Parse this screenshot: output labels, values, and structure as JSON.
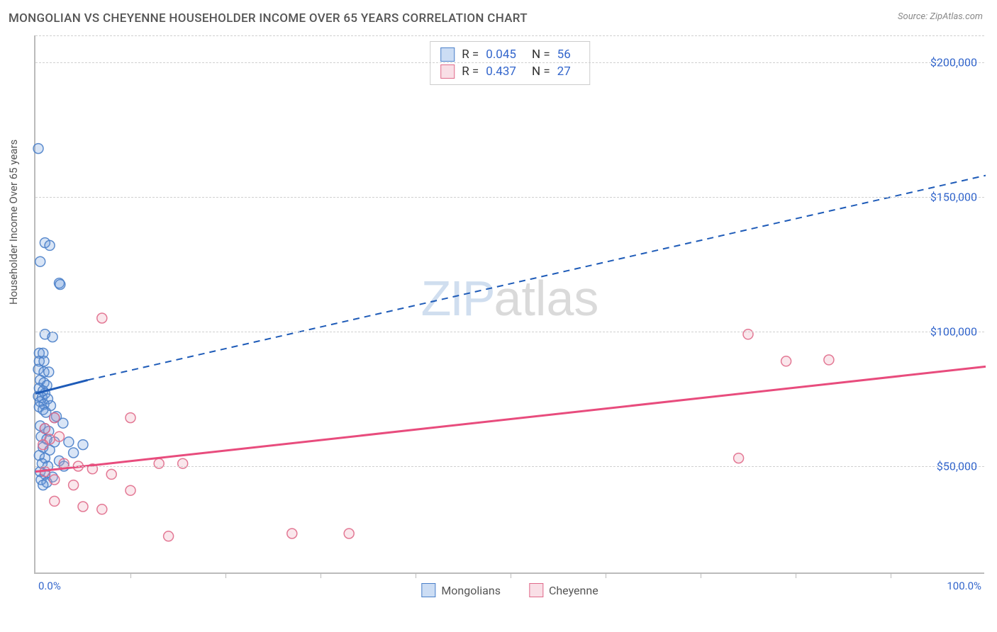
{
  "title": "MONGOLIAN VS CHEYENNE HOUSEHOLDER INCOME OVER 65 YEARS CORRELATION CHART",
  "source": "Source: ZipAtlas.com",
  "ylabel": "Householder Income Over 65 years",
  "watermark_left": "ZIP",
  "watermark_right": "atlas",
  "chart": {
    "type": "scatter",
    "xlim": [
      0,
      100
    ],
    "ylim": [
      10000,
      210000
    ],
    "x_tick_label_min": "0.0%",
    "x_tick_label_max": "100.0%",
    "x_minor_ticks": [
      10,
      20,
      30,
      40,
      50,
      60,
      70,
      80,
      90
    ],
    "y_ticks": [
      50000,
      100000,
      150000,
      200000
    ],
    "y_tick_labels": [
      "$50,000",
      "$100,000",
      "$150,000",
      "$200,000"
    ],
    "background_color": "#ffffff",
    "grid_color": "#d0d0d0",
    "axis_color": "#bbbbbb",
    "tick_label_color": "#3366cc",
    "axis_label_color": "#555555",
    "marker_radius": 7,
    "marker_stroke_width": 1.5,
    "marker_fill_opacity": 0.25,
    "marker_stroke_opacity": 0.9,
    "trend_line_width": 3,
    "trend_dash_pattern": "9 7",
    "series": [
      {
        "name": "Mongolians",
        "color": "#6699dd",
        "stroke": "#4a7fc9",
        "trend_color": "#1e5bb8",
        "r_label": "R =",
        "r_value": "0.045",
        "n_label": "N =",
        "n_value": "56",
        "trend_solid": {
          "x1": 0,
          "y1": 77000,
          "x2": 5.5,
          "y2": 82000
        },
        "trend_dash": {
          "x1": 5.5,
          "y1": 82000,
          "x2": 100,
          "y2": 158000
        },
        "points": [
          {
            "x": 0.3,
            "y": 168000
          },
          {
            "x": 1.0,
            "y": 133000
          },
          {
            "x": 1.5,
            "y": 132000
          },
          {
            "x": 0.5,
            "y": 126000
          },
          {
            "x": 2.5,
            "y": 118000
          },
          {
            "x": 2.6,
            "y": 117500
          },
          {
            "x": 1.0,
            "y": 99000
          },
          {
            "x": 1.8,
            "y": 98000
          },
          {
            "x": 0.4,
            "y": 92000
          },
          {
            "x": 0.8,
            "y": 92000
          },
          {
            "x": 0.4,
            "y": 89000
          },
          {
            "x": 0.9,
            "y": 89000
          },
          {
            "x": 0.3,
            "y": 86000
          },
          {
            "x": 0.9,
            "y": 85000
          },
          {
            "x": 1.4,
            "y": 85000
          },
          {
            "x": 0.5,
            "y": 82000
          },
          {
            "x": 0.9,
            "y": 81000
          },
          {
            "x": 1.2,
            "y": 80000
          },
          {
            "x": 0.4,
            "y": 79000
          },
          {
            "x": 0.8,
            "y": 78000
          },
          {
            "x": 1.0,
            "y": 77000
          },
          {
            "x": 0.3,
            "y": 76000
          },
          {
            "x": 0.7,
            "y": 75500
          },
          {
            "x": 1.3,
            "y": 75000
          },
          {
            "x": 0.5,
            "y": 74000
          },
          {
            "x": 0.9,
            "y": 73000
          },
          {
            "x": 1.6,
            "y": 72500
          },
          {
            "x": 0.4,
            "y": 72000
          },
          {
            "x": 0.8,
            "y": 71000
          },
          {
            "x": 1.1,
            "y": 70000
          },
          {
            "x": 2.0,
            "y": 68000
          },
          {
            "x": 2.9,
            "y": 66000
          },
          {
            "x": 0.5,
            "y": 65000
          },
          {
            "x": 1.0,
            "y": 64000
          },
          {
            "x": 1.4,
            "y": 63000
          },
          {
            "x": 0.6,
            "y": 61000
          },
          {
            "x": 1.2,
            "y": 60000
          },
          {
            "x": 2.0,
            "y": 59000
          },
          {
            "x": 3.5,
            "y": 59000
          },
          {
            "x": 5.0,
            "y": 58000
          },
          {
            "x": 0.8,
            "y": 57000
          },
          {
            "x": 1.5,
            "y": 56000
          },
          {
            "x": 4.0,
            "y": 55000
          },
          {
            "x": 0.4,
            "y": 54000
          },
          {
            "x": 1.0,
            "y": 53000
          },
          {
            "x": 2.5,
            "y": 52000
          },
          {
            "x": 0.7,
            "y": 51000
          },
          {
            "x": 1.3,
            "y": 50000
          },
          {
            "x": 3.0,
            "y": 50000
          },
          {
            "x": 0.5,
            "y": 48000
          },
          {
            "x": 1.0,
            "y": 47000
          },
          {
            "x": 1.8,
            "y": 46000
          },
          {
            "x": 0.6,
            "y": 45000
          },
          {
            "x": 1.2,
            "y": 44000
          },
          {
            "x": 0.8,
            "y": 43000
          },
          {
            "x": 2.2,
            "y": 68500
          }
        ]
      },
      {
        "name": "Cheyenne",
        "color": "#eda0b4",
        "stroke": "#e06a8a",
        "trend_color": "#e84c7d",
        "r_label": "R =",
        "r_value": "0.437",
        "n_label": "N =",
        "n_value": "27",
        "trend_solid": {
          "x1": 0,
          "y1": 48000,
          "x2": 100,
          "y2": 87000
        },
        "trend_dash": null,
        "points": [
          {
            "x": 7.0,
            "y": 105000
          },
          {
            "x": 75.0,
            "y": 99000
          },
          {
            "x": 79.0,
            "y": 89000
          },
          {
            "x": 83.5,
            "y": 89500
          },
          {
            "x": 2.0,
            "y": 68000
          },
          {
            "x": 10.0,
            "y": 68000
          },
          {
            "x": 1.0,
            "y": 64000
          },
          {
            "x": 2.5,
            "y": 61000
          },
          {
            "x": 1.5,
            "y": 60000
          },
          {
            "x": 0.8,
            "y": 58000
          },
          {
            "x": 74.0,
            "y": 53000
          },
          {
            "x": 13.0,
            "y": 51000
          },
          {
            "x": 15.5,
            "y": 51000
          },
          {
            "x": 3.0,
            "y": 51000
          },
          {
            "x": 4.5,
            "y": 50000
          },
          {
            "x": 6.0,
            "y": 49000
          },
          {
            "x": 1.0,
            "y": 48000
          },
          {
            "x": 8.0,
            "y": 47000
          },
          {
            "x": 2.0,
            "y": 45000
          },
          {
            "x": 4.0,
            "y": 43000
          },
          {
            "x": 10.0,
            "y": 41000
          },
          {
            "x": 2.0,
            "y": 37000
          },
          {
            "x": 5.0,
            "y": 35000
          },
          {
            "x": 7.0,
            "y": 34000
          },
          {
            "x": 14.0,
            "y": 24000
          },
          {
            "x": 27.0,
            "y": 25000
          },
          {
            "x": 33.0,
            "y": 25000
          }
        ]
      }
    ]
  }
}
